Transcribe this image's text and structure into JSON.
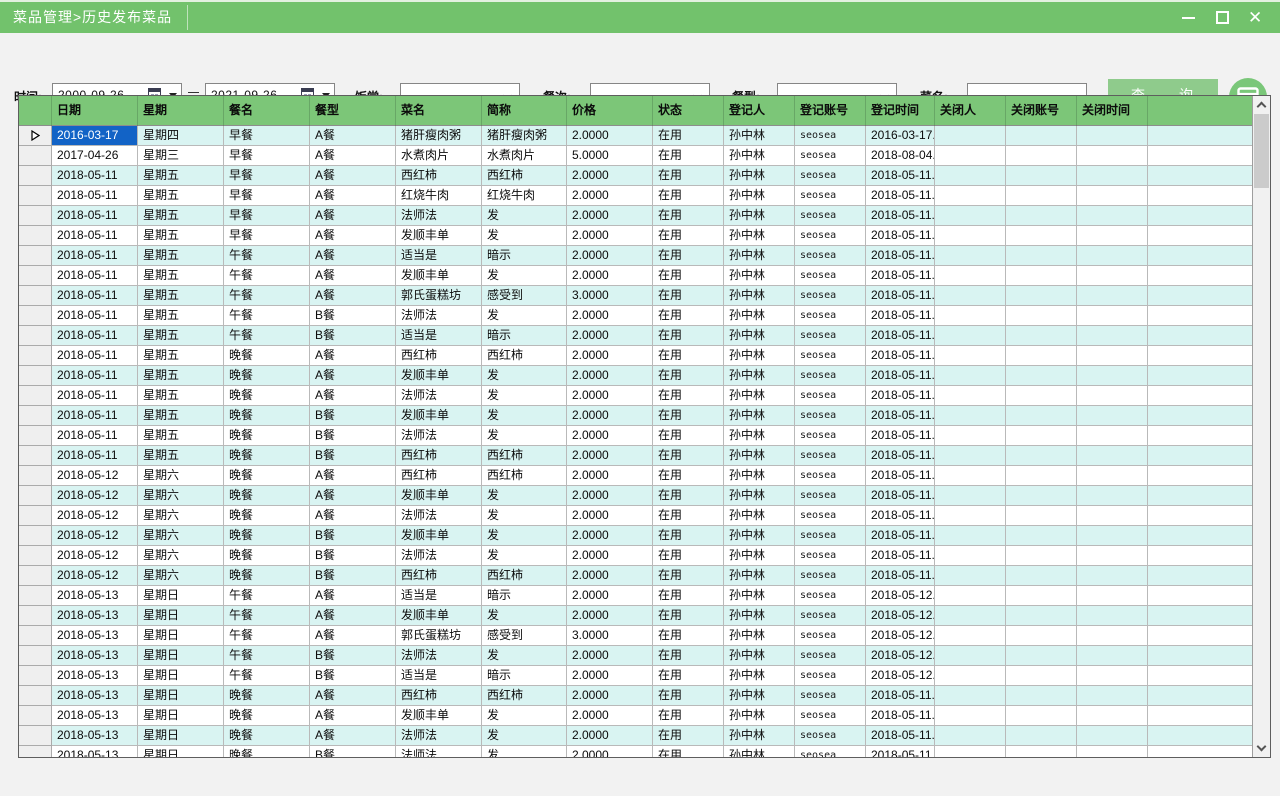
{
  "window": {
    "title": "菜品管理>历史发布菜品",
    "controls": {
      "minimize": "最小化",
      "maximize": "最大化",
      "close": "关闭"
    }
  },
  "filters": {
    "time_label": "时间:",
    "date_from": "2000-09-26",
    "range_separator": "–",
    "date_to": "2021-09-26",
    "canteen_label": "饭堂:",
    "canteen_value": "",
    "meal_label": "餐次:",
    "meal_value": "",
    "mealtype_label": "餐型:",
    "mealtype_value": "",
    "dishname_label": "菜名:",
    "dishname_value": "",
    "query_button": "查　　询"
  },
  "grid": {
    "columns": [
      "日期",
      "星期",
      "餐名",
      "餐型",
      "菜名",
      "简称",
      "价格",
      "状态",
      "登记人",
      "登记账号",
      "登记时间",
      "关闭人",
      "关闭账号",
      "关闭时间"
    ],
    "selected": {
      "row": 0,
      "col": 0
    },
    "rows": [
      [
        "2016-03-17",
        "星期四",
        "早餐",
        "A餐",
        "猪肝瘦肉粥",
        "猪肝瘦肉粥",
        "2.0000",
        "在用",
        "孙中林",
        "seosea",
        "2016-03-17...",
        "",
        "",
        ""
      ],
      [
        "2017-04-26",
        "星期三",
        "早餐",
        "A餐",
        "水煮肉片",
        "水煮肉片",
        "5.0000",
        "在用",
        "孙中林",
        "seosea",
        "2018-08-04...",
        "",
        "",
        ""
      ],
      [
        "2018-05-11",
        "星期五",
        "早餐",
        "A餐",
        "西红柿",
        "西红柿",
        "2.0000",
        "在用",
        "孙中林",
        "seosea",
        "2018-05-11...",
        "",
        "",
        ""
      ],
      [
        "2018-05-11",
        "星期五",
        "早餐",
        "A餐",
        "红烧牛肉",
        "红烧牛肉",
        "2.0000",
        "在用",
        "孙中林",
        "seosea",
        "2018-05-11...",
        "",
        "",
        ""
      ],
      [
        "2018-05-11",
        "星期五",
        "早餐",
        "A餐",
        "法师法",
        "发",
        "2.0000",
        "在用",
        "孙中林",
        "seosea",
        "2018-05-11...",
        "",
        "",
        ""
      ],
      [
        "2018-05-11",
        "星期五",
        "早餐",
        "A餐",
        "发顺丰单",
        "发",
        "2.0000",
        "在用",
        "孙中林",
        "seosea",
        "2018-05-11...",
        "",
        "",
        ""
      ],
      [
        "2018-05-11",
        "星期五",
        "午餐",
        "A餐",
        "适当是",
        "暗示",
        "2.0000",
        "在用",
        "孙中林",
        "seosea",
        "2018-05-11...",
        "",
        "",
        ""
      ],
      [
        "2018-05-11",
        "星期五",
        "午餐",
        "A餐",
        "发顺丰单",
        "发",
        "2.0000",
        "在用",
        "孙中林",
        "seosea",
        "2018-05-11...",
        "",
        "",
        ""
      ],
      [
        "2018-05-11",
        "星期五",
        "午餐",
        "A餐",
        "郭氏蛋糕坊",
        "感受到",
        "3.0000",
        "在用",
        "孙中林",
        "seosea",
        "2018-05-11...",
        "",
        "",
        ""
      ],
      [
        "2018-05-11",
        "星期五",
        "午餐",
        "B餐",
        "法师法",
        "发",
        "2.0000",
        "在用",
        "孙中林",
        "seosea",
        "2018-05-11...",
        "",
        "",
        ""
      ],
      [
        "2018-05-11",
        "星期五",
        "午餐",
        "B餐",
        "适当是",
        "暗示",
        "2.0000",
        "在用",
        "孙中林",
        "seosea",
        "2018-05-11...",
        "",
        "",
        ""
      ],
      [
        "2018-05-11",
        "星期五",
        "晚餐",
        "A餐",
        "西红柿",
        "西红柿",
        "2.0000",
        "在用",
        "孙中林",
        "seosea",
        "2018-05-11...",
        "",
        "",
        ""
      ],
      [
        "2018-05-11",
        "星期五",
        "晚餐",
        "A餐",
        "发顺丰单",
        "发",
        "2.0000",
        "在用",
        "孙中林",
        "seosea",
        "2018-05-11...",
        "",
        "",
        ""
      ],
      [
        "2018-05-11",
        "星期五",
        "晚餐",
        "A餐",
        "法师法",
        "发",
        "2.0000",
        "在用",
        "孙中林",
        "seosea",
        "2018-05-11...",
        "",
        "",
        ""
      ],
      [
        "2018-05-11",
        "星期五",
        "晚餐",
        "B餐",
        "发顺丰单",
        "发",
        "2.0000",
        "在用",
        "孙中林",
        "seosea",
        "2018-05-11...",
        "",
        "",
        ""
      ],
      [
        "2018-05-11",
        "星期五",
        "晚餐",
        "B餐",
        "法师法",
        "发",
        "2.0000",
        "在用",
        "孙中林",
        "seosea",
        "2018-05-11...",
        "",
        "",
        ""
      ],
      [
        "2018-05-11",
        "星期五",
        "晚餐",
        "B餐",
        "西红柿",
        "西红柿",
        "2.0000",
        "在用",
        "孙中林",
        "seosea",
        "2018-05-11...",
        "",
        "",
        ""
      ],
      [
        "2018-05-12",
        "星期六",
        "晚餐",
        "A餐",
        "西红柿",
        "西红柿",
        "2.0000",
        "在用",
        "孙中林",
        "seosea",
        "2018-05-11...",
        "",
        "",
        ""
      ],
      [
        "2018-05-12",
        "星期六",
        "晚餐",
        "A餐",
        "发顺丰单",
        "发",
        "2.0000",
        "在用",
        "孙中林",
        "seosea",
        "2018-05-11...",
        "",
        "",
        ""
      ],
      [
        "2018-05-12",
        "星期六",
        "晚餐",
        "A餐",
        "法师法",
        "发",
        "2.0000",
        "在用",
        "孙中林",
        "seosea",
        "2018-05-11...",
        "",
        "",
        ""
      ],
      [
        "2018-05-12",
        "星期六",
        "晚餐",
        "B餐",
        "发顺丰单",
        "发",
        "2.0000",
        "在用",
        "孙中林",
        "seosea",
        "2018-05-11...",
        "",
        "",
        ""
      ],
      [
        "2018-05-12",
        "星期六",
        "晚餐",
        "B餐",
        "法师法",
        "发",
        "2.0000",
        "在用",
        "孙中林",
        "seosea",
        "2018-05-11...",
        "",
        "",
        ""
      ],
      [
        "2018-05-12",
        "星期六",
        "晚餐",
        "B餐",
        "西红柿",
        "西红柿",
        "2.0000",
        "在用",
        "孙中林",
        "seosea",
        "2018-05-11...",
        "",
        "",
        ""
      ],
      [
        "2018-05-13",
        "星期日",
        "午餐",
        "A餐",
        "适当是",
        "暗示",
        "2.0000",
        "在用",
        "孙中林",
        "seosea",
        "2018-05-12...",
        "",
        "",
        ""
      ],
      [
        "2018-05-13",
        "星期日",
        "午餐",
        "A餐",
        "发顺丰单",
        "发",
        "2.0000",
        "在用",
        "孙中林",
        "seosea",
        "2018-05-12...",
        "",
        "",
        ""
      ],
      [
        "2018-05-13",
        "星期日",
        "午餐",
        "A餐",
        "郭氏蛋糕坊",
        "感受到",
        "3.0000",
        "在用",
        "孙中林",
        "seosea",
        "2018-05-12...",
        "",
        "",
        ""
      ],
      [
        "2018-05-13",
        "星期日",
        "午餐",
        "B餐",
        "法师法",
        "发",
        "2.0000",
        "在用",
        "孙中林",
        "seosea",
        "2018-05-12...",
        "",
        "",
        ""
      ],
      [
        "2018-05-13",
        "星期日",
        "午餐",
        "B餐",
        "适当是",
        "暗示",
        "2.0000",
        "在用",
        "孙中林",
        "seosea",
        "2018-05-12...",
        "",
        "",
        ""
      ],
      [
        "2018-05-13",
        "星期日",
        "晚餐",
        "A餐",
        "西红柿",
        "西红柿",
        "2.0000",
        "在用",
        "孙中林",
        "seosea",
        "2018-05-11...",
        "",
        "",
        ""
      ],
      [
        "2018-05-13",
        "星期日",
        "晚餐",
        "A餐",
        "发顺丰单",
        "发",
        "2.0000",
        "在用",
        "孙中林",
        "seosea",
        "2018-05-11...",
        "",
        "",
        ""
      ],
      [
        "2018-05-13",
        "星期日",
        "晚餐",
        "A餐",
        "法师法",
        "发",
        "2.0000",
        "在用",
        "孙中林",
        "seosea",
        "2018-05-11...",
        "",
        "",
        ""
      ],
      [
        "2018-05-13",
        "星期日",
        "晚餐",
        "B餐",
        "法师法",
        "发",
        "2.0000",
        "在用",
        "孙中林",
        "seosea",
        "2018-05-11...",
        "",
        "",
        ""
      ]
    ]
  },
  "colors": {
    "titlebar_green": "#72C26C",
    "header_green": "#7CC678",
    "button_green": "#8FCB8C",
    "round_button_green": "#7AC779",
    "row_alt_cyan": "#D9F4F2",
    "selected_cell_blue": "#1263C6",
    "gridline_gray": "#B9B9B9"
  }
}
